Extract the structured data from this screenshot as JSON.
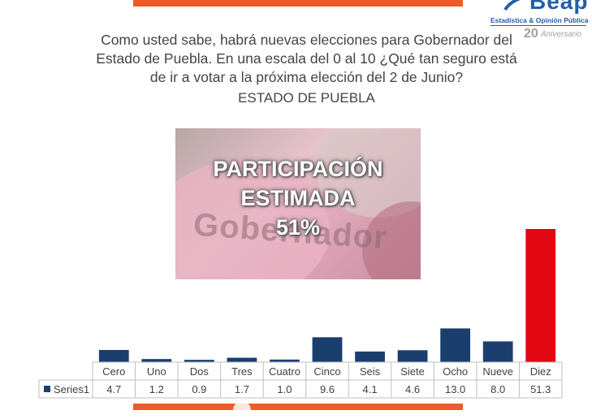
{
  "header": {
    "question": "Como usted sabe, habrá nuevas elecciones para Gobernador del Estado de Puebla. En una escala del 0 al 10 ¿Qué tan seguro está de ir a votar a la próxima elección del 2 de Junio?",
    "question_lines": [
      "Como usted sabe, habrá nuevas elecciones para Gobernador del",
      "Estado de Puebla. En una escala del 0 al 10 ¿Qué tan seguro está",
      "de ir a votar a la próxima elección del 2 de Junio?"
    ],
    "subtitle": "ESTADO DE PUEBLA"
  },
  "logo": {
    "name": "Beap",
    "subtitle": "Estadística & Opinión Pública",
    "anniversary_number": "20",
    "anniversary_label": "Aniversario"
  },
  "callout": {
    "line1": "PARTICIPACIÓN",
    "line2": "ESTIMADA",
    "line3": "51%",
    "photo_word": "Gobernador"
  },
  "colors": {
    "bar": "#1a3f6f",
    "highlight": "#e30613",
    "accent": "#f05a28",
    "grid": "#bfbfbf"
  },
  "chart_data": {
    "type": "bar",
    "categories": [
      "Cero",
      "Uno",
      "Dos",
      "Tres",
      "Cuatro",
      "Cinco",
      "Seis",
      "Siete",
      "Ocho",
      "Nueve",
      "Diez"
    ],
    "series": [
      {
        "name": "Series1",
        "values": [
          4.7,
          1.2,
          0.9,
          1.7,
          1.0,
          9.6,
          4.1,
          4.6,
          13.0,
          8.0,
          51.3
        ]
      }
    ],
    "value_labels": [
      "4.7",
      "1.2",
      "0.9",
      "1.7",
      "1.0",
      "9.6",
      "4.1",
      "4.6",
      "13.0",
      "8.0",
      "51.3"
    ],
    "highlight_index": 10,
    "ylim": [
      0,
      51.3
    ],
    "legend": "data-table",
    "grid": false
  }
}
